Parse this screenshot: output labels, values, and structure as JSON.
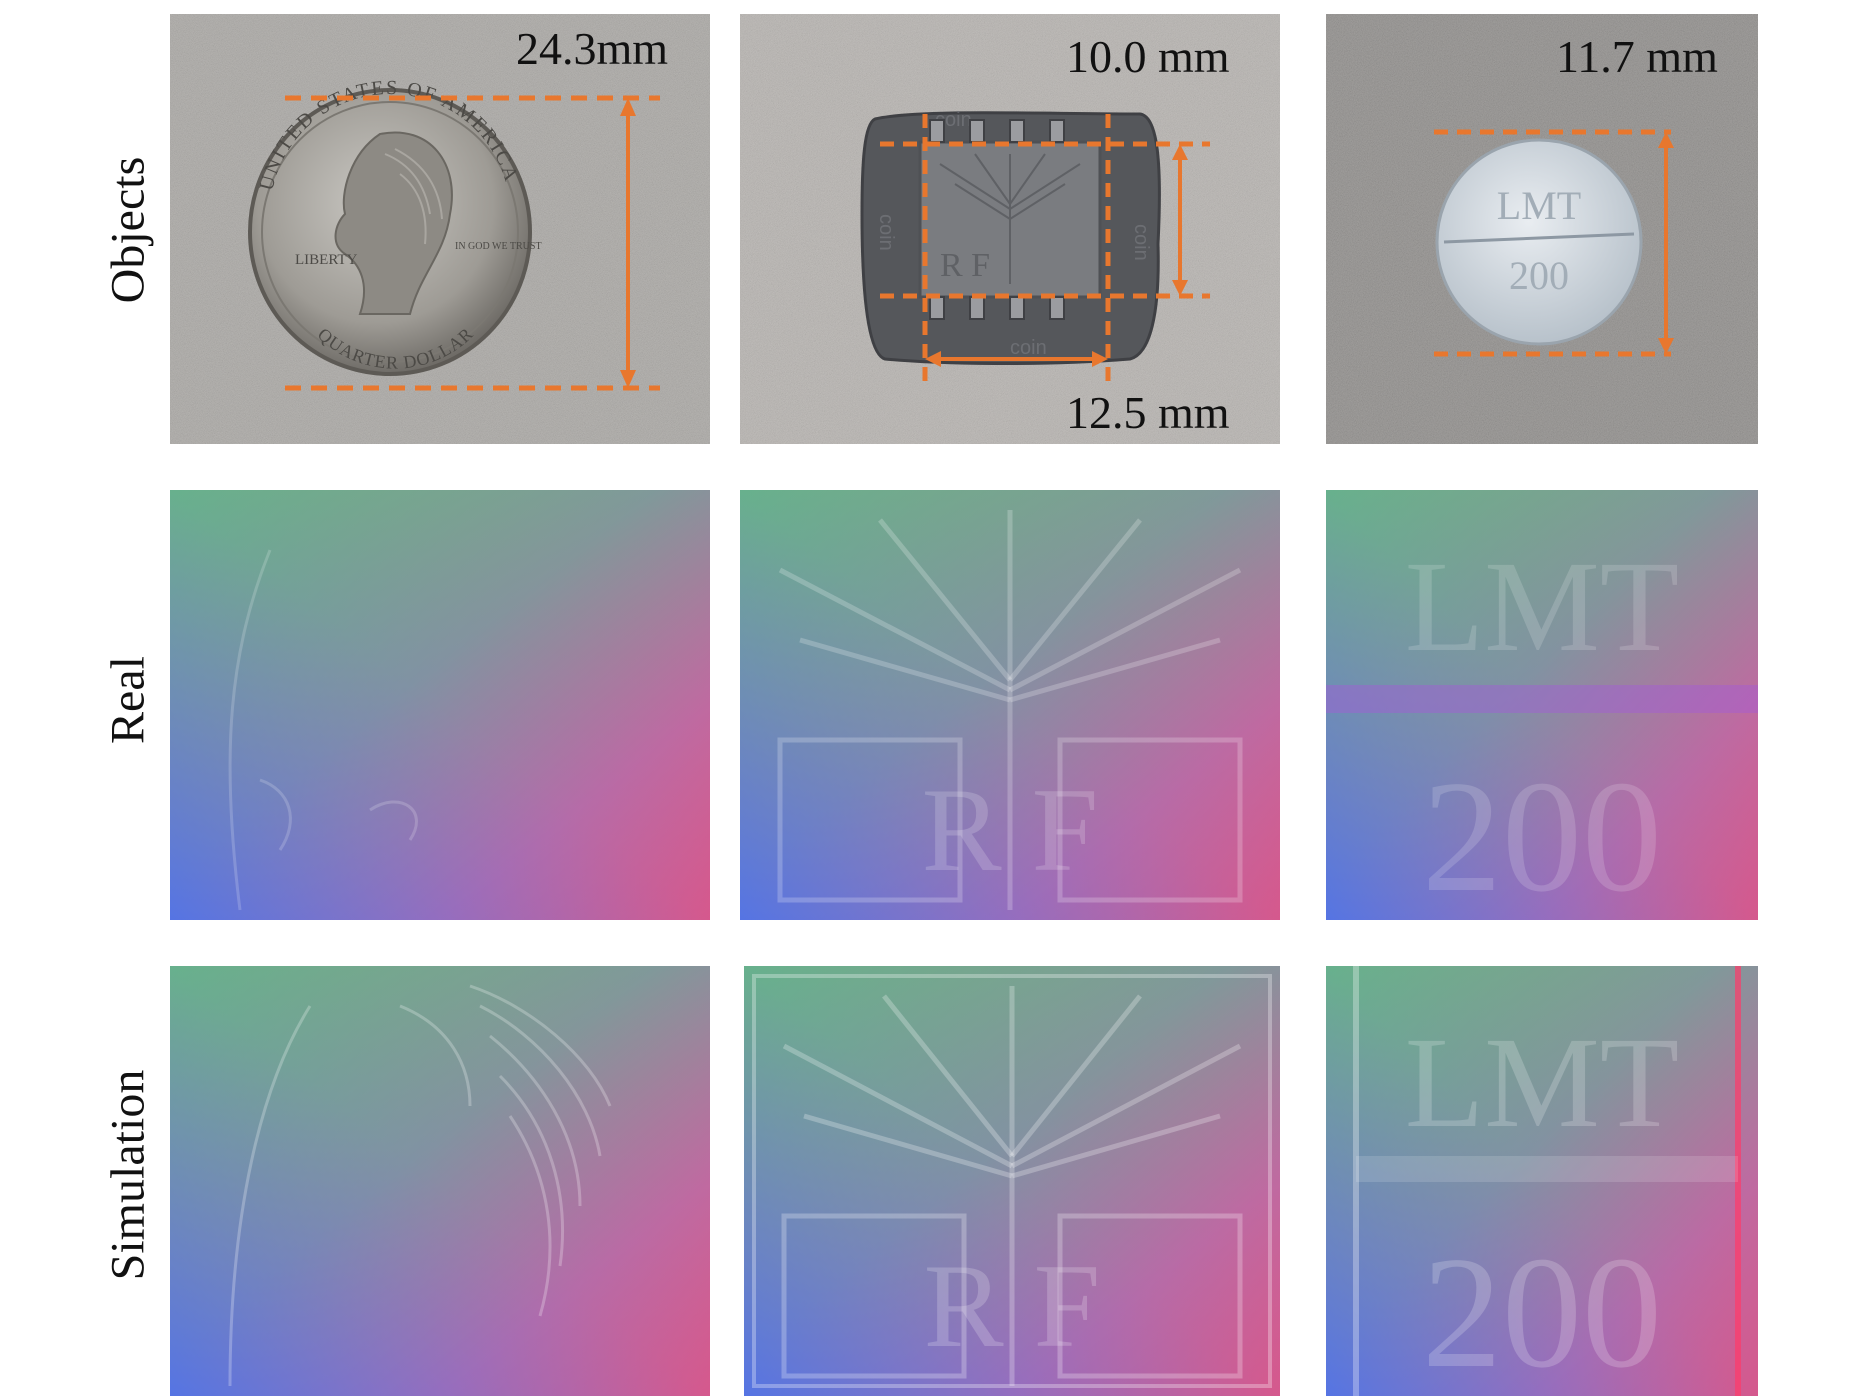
{
  "row_labels": {
    "objects": "Objects",
    "real": "Real",
    "simulation": "Simulation"
  },
  "objects": {
    "coin": {
      "dimension": "24.3mm",
      "text_top": "UNITED STATES OF AMERICA",
      "text_left": "LIBERTY",
      "text_bottom": "QUARTER DOLLAR",
      "text_motto": "IN GOD WE TRUST"
    },
    "chip": {
      "dimension_height": "10.0 mm",
      "dimension_width": "12.5 mm",
      "label": "coin"
    },
    "pill": {
      "dimension": "11.7 mm",
      "line1": "LMT",
      "line2": "200"
    }
  },
  "real": {
    "pill_line1": "LMT",
    "pill_line2": "200",
    "chip_letters": "R  F"
  },
  "simulation": {
    "pill_line1": "LMT",
    "pill_line2": "200",
    "chip_letters": "R  F"
  },
  "colors": {
    "annotation": "#e8772e",
    "background_gray": "#b8b6b3"
  }
}
